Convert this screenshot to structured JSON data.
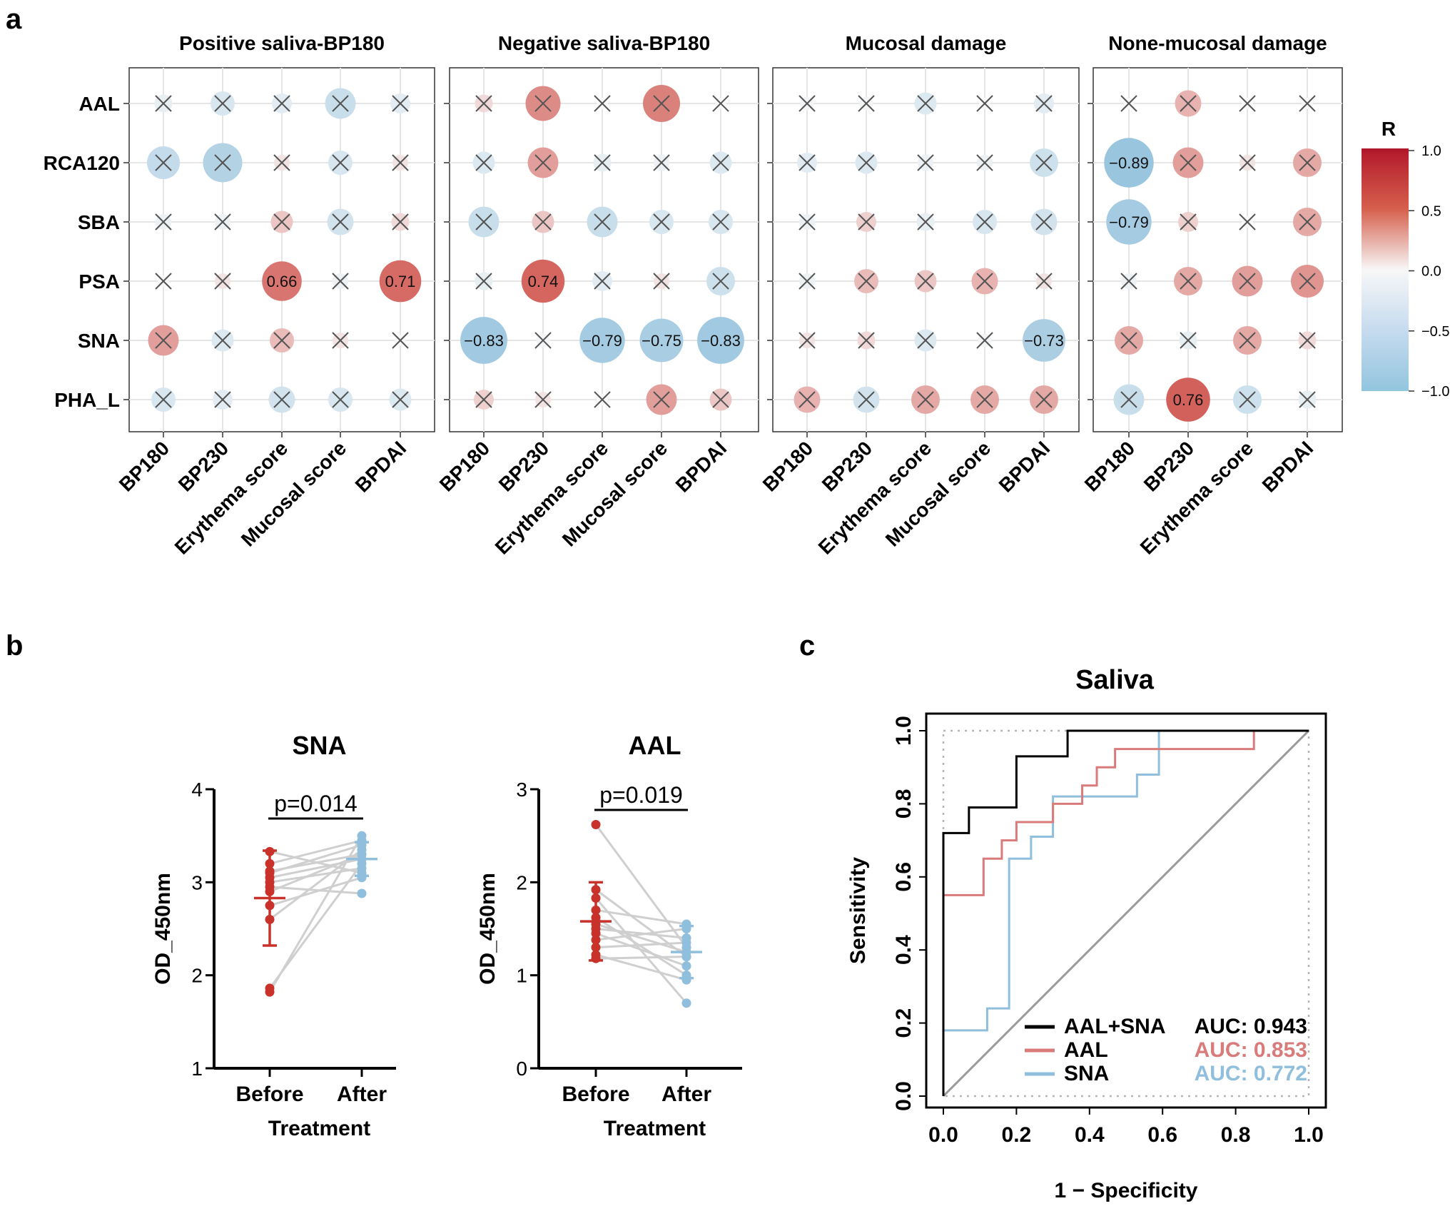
{
  "panel_labels": {
    "a": "a",
    "b": "b",
    "c": "c"
  },
  "chart_data": [
    {
      "type": "correlation-matrix",
      "rows": [
        "AAL",
        "RCA120",
        "SBA",
        "PSA",
        "SNA",
        "PHA_L"
      ],
      "legend": {
        "title": "R",
        "ticks": [
          "1.0",
          "0.5",
          "0.0",
          "−0.5",
          "−1.0"
        ],
        "tick_values": [
          1.0,
          0.5,
          0.0,
          -0.5,
          -1.0
        ],
        "colors": {
          "high": "#c8322a",
          "mid": "#f7f7f7",
          "low": "#8fbfdc"
        }
      },
      "panels": [
        {
          "title": "Positive saliva-BP180",
          "columns": [
            "BP180",
            "BP230",
            "Erythema score",
            "Mucosal score",
            "BPDAI"
          ],
          "r": [
            [
              -0.15,
              -0.3,
              -0.2,
              -0.45,
              -0.2
            ],
            [
              -0.5,
              -0.65,
              0.1,
              -0.3,
              0.1
            ],
            [
              -0.1,
              -0.1,
              0.25,
              -0.35,
              0.15
            ],
            [
              0.0,
              0.1,
              0.66,
              -0.1,
              0.71
            ],
            [
              0.45,
              -0.25,
              0.3,
              0.1,
              0.0
            ],
            [
              -0.3,
              -0.2,
              -0.35,
              -0.3,
              -0.25
            ]
          ],
          "labels": [
            [
              "",
              "",
              "",
              "",
              ""
            ],
            [
              "",
              "",
              "",
              "",
              ""
            ],
            [
              "",
              "",
              "",
              "",
              ""
            ],
            [
              "",
              "",
              "0.66",
              "",
              "0.71"
            ],
            [
              "",
              "",
              "",
              "",
              ""
            ],
            [
              "",
              "",
              "",
              "",
              ""
            ]
          ]
        },
        {
          "title": "Negative saliva-BP180",
          "columns": [
            "BP180",
            "BP230",
            "Erythema score",
            "Mucosal score",
            "BPDAI"
          ],
          "r": [
            [
              0.15,
              0.55,
              0.0,
              0.6,
              0.0
            ],
            [
              -0.25,
              0.45,
              -0.15,
              -0.1,
              -0.25
            ],
            [
              -0.45,
              0.25,
              -0.45,
              -0.3,
              -0.3
            ],
            [
              -0.15,
              0.74,
              -0.2,
              0.1,
              -0.4
            ],
            [
              -0.83,
              -0.05,
              -0.79,
              -0.75,
              -0.83
            ],
            [
              0.2,
              0.1,
              0.0,
              0.45,
              0.25
            ]
          ],
          "labels": [
            [
              "",
              "",
              "",
              "",
              ""
            ],
            [
              "",
              "",
              "",
              "",
              ""
            ],
            [
              "",
              "",
              "",
              "",
              ""
            ],
            [
              "",
              "0.74",
              "",
              "",
              ""
            ],
            [
              "−0.83",
              "",
              "−0.79",
              "−0.75",
              "−0.83"
            ],
            [
              "",
              "",
              "",
              "",
              ""
            ]
          ]
        },
        {
          "title": "Mucosal damage",
          "columns": [
            "BP180",
            "BP230",
            "Erythema score",
            "Mucosal score",
            "BPDAI"
          ],
          "r": [
            [
              -0.05,
              -0.05,
              -0.25,
              0.0,
              -0.2
            ],
            [
              -0.2,
              -0.25,
              -0.1,
              -0.1,
              -0.4
            ],
            [
              -0.1,
              0.2,
              -0.15,
              -0.3,
              -0.35
            ],
            [
              -0.1,
              0.3,
              0.25,
              0.35,
              0.1
            ],
            [
              0.1,
              0.15,
              -0.25,
              -0.05,
              -0.73
            ],
            [
              0.35,
              -0.35,
              0.4,
              0.4,
              0.4
            ]
          ],
          "labels": [
            [
              "",
              "",
              "",
              "",
              ""
            ],
            [
              "",
              "",
              "",
              "",
              ""
            ],
            [
              "",
              "",
              "",
              "",
              ""
            ],
            [
              "",
              "",
              "",
              "",
              ""
            ],
            [
              "",
              "",
              "",
              "",
              "−0.73"
            ],
            [
              "",
              "",
              "",
              "",
              ""
            ]
          ]
        },
        {
          "title": "None-mucosal damage",
          "columns": [
            "BP180",
            "BP230",
            "Erythema score",
            "BPDAI"
          ],
          "r": [
            [
              0.0,
              0.35,
              0.0,
              0.0
            ],
            [
              -0.89,
              0.45,
              0.1,
              0.4
            ],
            [
              -0.79,
              0.2,
              0.0,
              0.4
            ],
            [
              -0.1,
              0.4,
              0.45,
              0.5
            ],
            [
              0.4,
              -0.15,
              0.4,
              0.15
            ],
            [
              -0.45,
              0.76,
              -0.4,
              -0.15
            ]
          ],
          "labels": [
            [
              "",
              "",
              "",
              ""
            ],
            [
              "−0.89",
              "",
              "",
              ""
            ],
            [
              "−0.79",
              "",
              "",
              ""
            ],
            [
              "",
              "",
              "",
              ""
            ],
            [
              "",
              "",
              "",
              ""
            ],
            [
              "",
              "0.76",
              "",
              ""
            ]
          ]
        }
      ]
    },
    {
      "type": "scatter",
      "title": "SNA",
      "ylabel": "OD_450nm",
      "xlabel": "Treatment",
      "categories": [
        "Before",
        "After"
      ],
      "ylim": [
        1,
        4
      ],
      "yticks": [
        1,
        2,
        3,
        4
      ],
      "pvalue": "p=0.014",
      "before": [
        1.82,
        1.86,
        2.6,
        2.75,
        2.9,
        2.95,
        3.0,
        3.05,
        3.1,
        3.12,
        3.2,
        3.33
      ],
      "after": [
        3.5,
        3.2,
        3.35,
        3.05,
        3.3,
        2.88,
        3.15,
        3.25,
        3.4,
        3.3,
        3.45,
        3.1
      ],
      "mean": {
        "before": 2.83,
        "after": 3.25
      },
      "sd": {
        "before": 0.51,
        "after": 0.18
      },
      "colors": {
        "before": "#c8322a",
        "after": "#8fbfdc",
        "line": "#cfcfcf"
      }
    },
    {
      "type": "scatter",
      "title": "AAL",
      "ylabel": "OD_450nm",
      "xlabel": "Treatment",
      "categories": [
        "Before",
        "After"
      ],
      "ylim": [
        0,
        3
      ],
      "yticks": [
        0,
        1,
        2,
        3
      ],
      "pvalue": "p=0.019",
      "before": [
        2.62,
        1.92,
        1.83,
        1.7,
        1.62,
        1.55,
        1.5,
        1.45,
        1.38,
        1.3,
        1.22,
        1.18
      ],
      "after": [
        1.3,
        1.2,
        0.7,
        1.55,
        1.0,
        1.25,
        1.4,
        1.1,
        1.5,
        1.35,
        0.95,
        1.2
      ],
      "mean": {
        "before": 1.58,
        "after": 1.25
      },
      "sd": {
        "before": 0.42,
        "after": 0.28
      },
      "colors": {
        "before": "#c8322a",
        "after": "#8fbfdc",
        "line": "#cfcfcf"
      }
    },
    {
      "type": "line",
      "title": "Saliva",
      "xlabel": "1 − Specificity",
      "ylabel": "Sensitivity",
      "xlim": [
        0,
        1
      ],
      "ylim": [
        0,
        1
      ],
      "xticks": [
        "0.0",
        "0.2",
        "0.4",
        "0.6",
        "0.8",
        "1.0"
      ],
      "yticks": [
        "0.0",
        "0.2",
        "0.4",
        "0.6",
        "0.8",
        "1.0"
      ],
      "series": [
        {
          "name": "AAL+SNA",
          "auc": "AUC: 0.943",
          "color": "#000000",
          "x": [
            0,
            0,
            0.07,
            0.07,
            0.2,
            0.2,
            0.34,
            0.34,
            1.0
          ],
          "y": [
            0,
            0.72,
            0.72,
            0.79,
            0.79,
            0.93,
            0.93,
            1.0,
            1.0
          ]
        },
        {
          "name": "AAL",
          "auc": "AUC: 0.853",
          "color": "#d97b7b",
          "x": [
            0,
            0,
            0.11,
            0.11,
            0.16,
            0.16,
            0.2,
            0.2,
            0.3,
            0.3,
            0.38,
            0.38,
            0.42,
            0.42,
            0.47,
            0.47,
            0.52,
            0.52,
            0.85,
            0.85
          ],
          "y": [
            0,
            0.55,
            0.55,
            0.65,
            0.65,
            0.7,
            0.7,
            0.75,
            0.75,
            0.8,
            0.8,
            0.85,
            0.85,
            0.9,
            0.9,
            0.95,
            0.95,
            0.95,
            0.95,
            1.0
          ]
        },
        {
          "name": "SNA",
          "auc": "AUC: 0.772",
          "color": "#8fbfdc",
          "x": [
            0,
            0,
            0.12,
            0.12,
            0.18,
            0.18,
            0.24,
            0.24,
            0.3,
            0.3,
            0.53,
            0.53,
            0.59,
            0.59,
            1.0
          ],
          "y": [
            0,
            0.18,
            0.18,
            0.24,
            0.24,
            0.65,
            0.65,
            0.71,
            0.71,
            0.82,
            0.82,
            0.88,
            0.88,
            1.0,
            1.0
          ]
        }
      ]
    }
  ]
}
